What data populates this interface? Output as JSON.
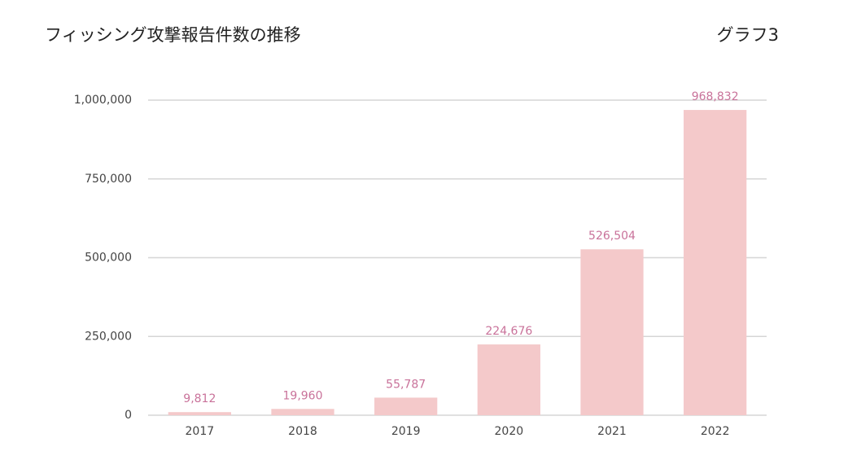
{
  "chart_data": {
    "type": "bar",
    "title": "フィッシング攻撃報告件数の推移",
    "subtitle": "グラフ3",
    "categories": [
      "2017",
      "2018",
      "2019",
      "2020",
      "2021",
      "2022"
    ],
    "values": [
      9812,
      19960,
      55787,
      224676,
      526504,
      968832
    ],
    "value_labels": [
      "9,812",
      "19,960",
      "55,787",
      "224,676",
      "526,504",
      "968,832"
    ],
    "color": "#f4c9ca",
    "value_label_color": "#c9729a",
    "ylim": [
      0,
      1000000
    ],
    "yticks": [
      0,
      {
        "value": 250000,
        "label": "250,000"
      },
      {
        "value": 500000,
        "label": "500,000"
      },
      {
        "value": 750000,
        "label": "750,000"
      },
      {
        "value": 1000000,
        "label": "1,000,000"
      }
    ],
    "grid": true
  }
}
